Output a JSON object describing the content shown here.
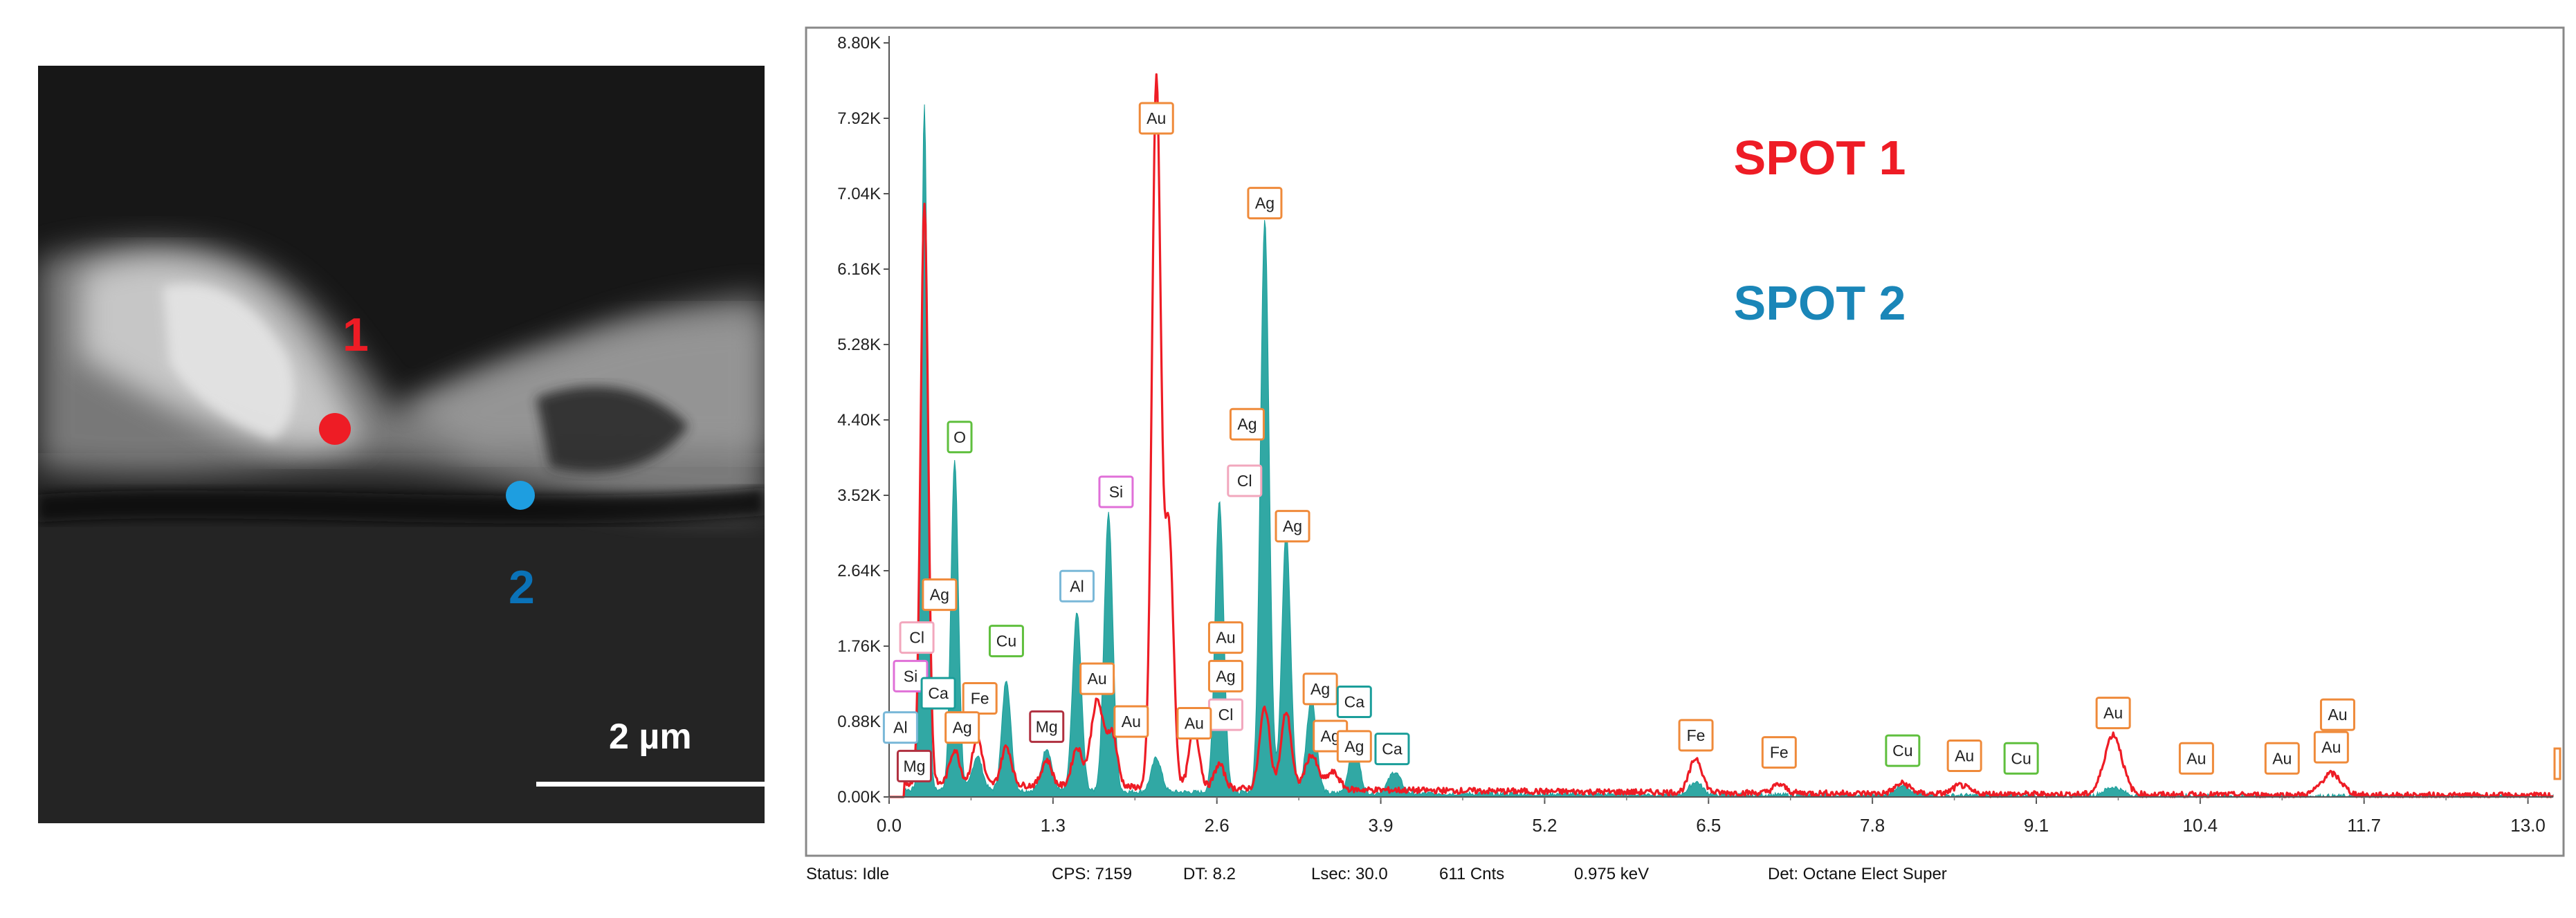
{
  "sem_image": {
    "spot_labels": [
      {
        "text": "1",
        "color": "#ee1c25"
      },
      {
        "text": "2",
        "color": "#0a72b8"
      }
    ],
    "spot_marker_colors": [
      "#ee1c25",
      "#1e9ee0"
    ],
    "scale_bar_label": "2 µm"
  },
  "status_bar": {
    "status": "Status: Idle",
    "cps": "CPS: 7159",
    "dt": "DT: 8.2",
    "lsec": "Lsec: 30.0",
    "counts": "611 Cnts",
    "kev": "0.975 keV",
    "detector": "Det: Octane Elect Super"
  },
  "chart_data": {
    "type": "line",
    "title": "",
    "xlabel": "",
    "ylabel": "",
    "x_ticks": [
      "0.0",
      "1.3",
      "2.6",
      "3.9",
      "5.2",
      "6.5",
      "7.8",
      "9.1",
      "10.4",
      "11.7",
      "13.0"
    ],
    "x_tick_values": [
      0.0,
      1.3,
      2.6,
      3.9,
      5.2,
      6.5,
      7.8,
      9.1,
      10.4,
      11.7,
      13.0
    ],
    "y_ticks": [
      "0.00K",
      "0.88K",
      "1.76K",
      "2.64K",
      "3.52K",
      "4.40K",
      "5.28K",
      "6.16K",
      "7.04K",
      "7.92K",
      "8.80K"
    ],
    "y_tick_values": [
      0,
      880,
      1760,
      2640,
      3520,
      4400,
      5280,
      6160,
      7040,
      7920,
      8800
    ],
    "xlim": [
      0,
      13.2
    ],
    "ylim": [
      0,
      8800
    ],
    "baseline": 150,
    "legend": [
      {
        "text": "SPOT 1",
        "color": "#ee1c25"
      },
      {
        "text": "SPOT 2",
        "color": "#1a86b8"
      }
    ],
    "series": [
      {
        "name": "SPOT 1",
        "style": "line",
        "color": "#ee1c25",
        "peaks": [
          {
            "x": 0.28,
            "y": 6800,
            "w": 0.03
          },
          {
            "x": 0.52,
            "y": 400,
            "w": 0.04
          },
          {
            "x": 0.7,
            "y": 550,
            "w": 0.04
          },
          {
            "x": 0.93,
            "y": 450,
            "w": 0.04
          },
          {
            "x": 1.25,
            "y": 300,
            "w": 0.04
          },
          {
            "x": 1.49,
            "y": 450,
            "w": 0.04
          },
          {
            "x": 1.65,
            "y": 1000,
            "w": 0.05
          },
          {
            "x": 1.77,
            "y": 600,
            "w": 0.04
          },
          {
            "x": 2.12,
            "y": 8250,
            "w": 0.035
          },
          {
            "x": 2.22,
            "y": 3000,
            "w": 0.035
          },
          {
            "x": 2.42,
            "y": 700,
            "w": 0.04
          },
          {
            "x": 2.62,
            "y": 280,
            "w": 0.04
          },
          {
            "x": 2.98,
            "y": 950,
            "w": 0.04
          },
          {
            "x": 3.15,
            "y": 900,
            "w": 0.04
          },
          {
            "x": 3.35,
            "y": 400,
            "w": 0.05
          },
          {
            "x": 3.52,
            "y": 200,
            "w": 0.05
          },
          {
            "x": 6.4,
            "y": 400,
            "w": 0.05
          },
          {
            "x": 7.06,
            "y": 100,
            "w": 0.05
          },
          {
            "x": 8.04,
            "y": 120,
            "w": 0.06
          },
          {
            "x": 8.5,
            "y": 100,
            "w": 0.06
          },
          {
            "x": 9.71,
            "y": 700,
            "w": 0.07
          },
          {
            "x": 11.44,
            "y": 250,
            "w": 0.08
          }
        ]
      },
      {
        "name": "SPOT 2",
        "style": "area",
        "color": "#1b9e9a",
        "peaks": [
          {
            "x": 0.28,
            "y": 8000,
            "w": 0.025
          },
          {
            "x": 0.52,
            "y": 3850,
            "w": 0.03
          },
          {
            "x": 0.7,
            "y": 400,
            "w": 0.04
          },
          {
            "x": 0.93,
            "y": 1300,
            "w": 0.035
          },
          {
            "x": 1.25,
            "y": 500,
            "w": 0.04
          },
          {
            "x": 1.49,
            "y": 2100,
            "w": 0.035
          },
          {
            "x": 1.74,
            "y": 3250,
            "w": 0.035
          },
          {
            "x": 2.12,
            "y": 400,
            "w": 0.04
          },
          {
            "x": 2.62,
            "y": 3400,
            "w": 0.035
          },
          {
            "x": 2.98,
            "y": 6700,
            "w": 0.035
          },
          {
            "x": 3.15,
            "y": 3050,
            "w": 0.035
          },
          {
            "x": 3.35,
            "y": 1100,
            "w": 0.04
          },
          {
            "x": 3.69,
            "y": 600,
            "w": 0.04
          },
          {
            "x": 4.01,
            "y": 250,
            "w": 0.05
          },
          {
            "x": 6.4,
            "y": 150,
            "w": 0.05
          },
          {
            "x": 8.04,
            "y": 120,
            "w": 0.06
          },
          {
            "x": 9.71,
            "y": 100,
            "w": 0.07
          }
        ]
      }
    ],
    "annotations": [
      {
        "label": "Au",
        "x": 2.12,
        "y": 7920,
        "color": "#ef8a3a"
      },
      {
        "label": "Ag",
        "x": 2.98,
        "y": 6930,
        "color": "#ef8a3a"
      },
      {
        "label": "Ag",
        "x": 2.84,
        "y": 4350,
        "color": "#ef8a3a"
      },
      {
        "label": "Cl",
        "x": 2.82,
        "y": 3690,
        "color": "#f2a7bd"
      },
      {
        "label": "Ag",
        "x": 3.2,
        "y": 3160,
        "color": "#ef8a3a"
      },
      {
        "label": "O",
        "x": 0.56,
        "y": 4200,
        "color": "#5fbf3d"
      },
      {
        "label": "Si",
        "x": 1.8,
        "y": 3560,
        "color": "#e070d8"
      },
      {
        "label": "Al",
        "x": 1.49,
        "y": 2460,
        "color": "#7ab8d8"
      },
      {
        "label": "Ag",
        "x": 0.4,
        "y": 2360,
        "color": "#ef8a3a"
      },
      {
        "label": "Cl",
        "x": 0.22,
        "y": 1860,
        "color": "#f2a7bd"
      },
      {
        "label": "Cu",
        "x": 0.93,
        "y": 1820,
        "color": "#5fbf3d"
      },
      {
        "label": "Si",
        "x": 0.17,
        "y": 1410,
        "color": "#e070d8"
      },
      {
        "label": "Ca",
        "x": 0.39,
        "y": 1210,
        "color": "#1b9e9a"
      },
      {
        "label": "Fe",
        "x": 0.72,
        "y": 1150,
        "color": "#ef8a3a"
      },
      {
        "label": "Au",
        "x": 1.65,
        "y": 1380,
        "color": "#ef8a3a"
      },
      {
        "label": "Au",
        "x": 2.67,
        "y": 1860,
        "color": "#ef8a3a"
      },
      {
        "label": "Ag",
        "x": 2.67,
        "y": 1410,
        "color": "#ef8a3a"
      },
      {
        "label": "Cl",
        "x": 2.67,
        "y": 960,
        "color": "#f2a7bd"
      },
      {
        "label": "Ag",
        "x": 3.42,
        "y": 1260,
        "color": "#ef8a3a"
      },
      {
        "label": "Ca",
        "x": 3.69,
        "y": 1110,
        "color": "#1b9e9a"
      },
      {
        "label": "Al",
        "x": 0.09,
        "y": 810,
        "color": "#7ab8d8"
      },
      {
        "label": "Ag",
        "x": 0.58,
        "y": 810,
        "color": "#ef8a3a"
      },
      {
        "label": "Mg",
        "x": 1.25,
        "y": 820,
        "color": "#b03040"
      },
      {
        "label": "Au",
        "x": 1.92,
        "y": 880,
        "color": "#ef8a3a"
      },
      {
        "label": "Au",
        "x": 2.42,
        "y": 860,
        "color": "#ef8a3a"
      },
      {
        "label": "Ag",
        "x": 3.5,
        "y": 710,
        "color": "#ef8a3a"
      },
      {
        "label": "Ag",
        "x": 3.69,
        "y": 590,
        "color": "#ef8a3a"
      },
      {
        "label": "Ca",
        "x": 3.99,
        "y": 560,
        "color": "#1b9e9a"
      },
      {
        "label": "Mg",
        "x": 0.2,
        "y": 360,
        "color": "#b03040"
      },
      {
        "label": "Fe",
        "x": 6.4,
        "y": 720,
        "color": "#ef8a3a"
      },
      {
        "label": "Fe",
        "x": 7.06,
        "y": 520,
        "color": "#ef8a3a"
      },
      {
        "label": "Cu",
        "x": 8.04,
        "y": 540,
        "color": "#5fbf3d"
      },
      {
        "label": "Au",
        "x": 8.53,
        "y": 480,
        "color": "#ef8a3a"
      },
      {
        "label": "Cu",
        "x": 8.98,
        "y": 450,
        "color": "#5fbf3d"
      },
      {
        "label": "Au",
        "x": 9.71,
        "y": 980,
        "color": "#ef8a3a"
      },
      {
        "label": "Au",
        "x": 10.37,
        "y": 450,
        "color": "#ef8a3a"
      },
      {
        "label": "Au",
        "x": 11.05,
        "y": 450,
        "color": "#ef8a3a"
      },
      {
        "label": "Au",
        "x": 11.44,
        "y": 580,
        "color": "#ef8a3a"
      },
      {
        "label": "Au",
        "x": 11.49,
        "y": 960,
        "color": "#ef8a3a"
      }
    ]
  }
}
